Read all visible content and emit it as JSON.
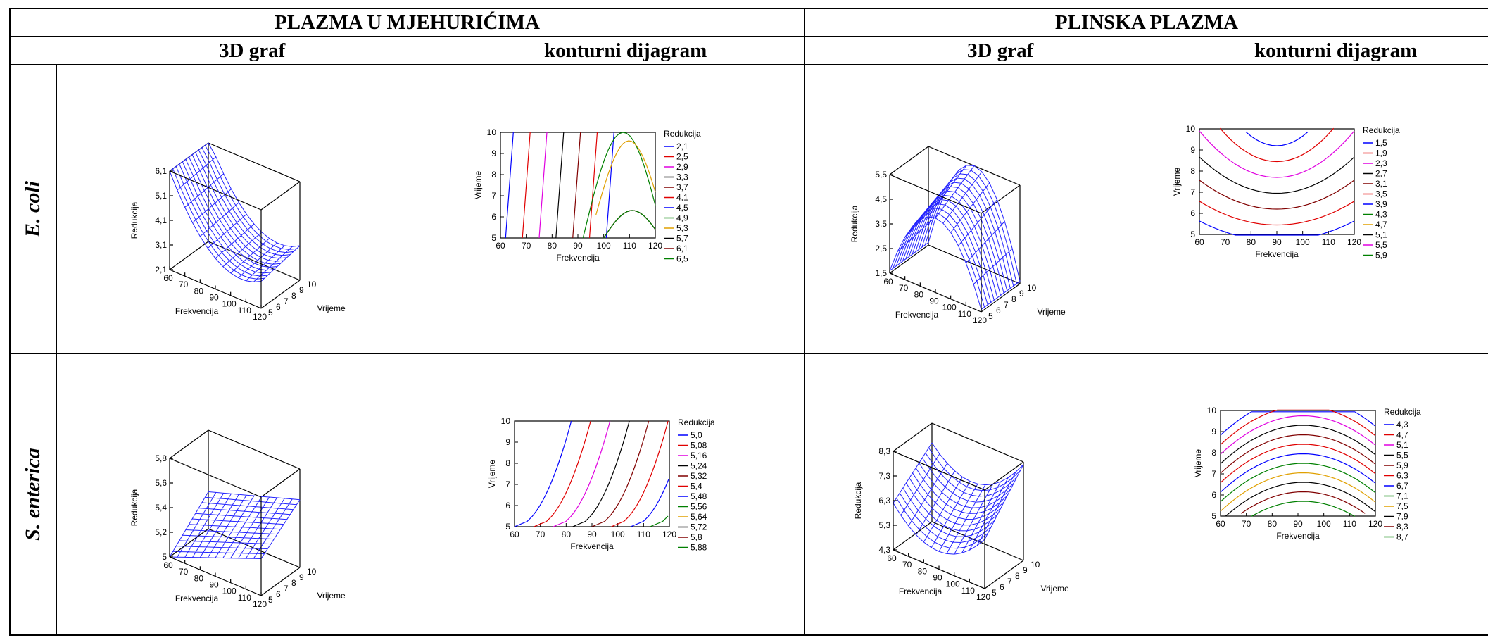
{
  "headers": {
    "group_a": "PLAZMA U MJEHURIĆIMA",
    "group_b": "PLINSKA PLAZMA",
    "graph3d": "3D graf",
    "contour": "konturni dijagram"
  },
  "rows": {
    "ecoli": "E. coli",
    "senterica": "S. enterica"
  },
  "chart_data": [
    {
      "id": "ecoli-bubble-3d",
      "type": "surface3d",
      "xlabel": "Frekvencija",
      "ylabel": "Vrijeme",
      "zlabel": "Redukcija",
      "x_ticks": [
        "60",
        "70",
        "80",
        "90",
        "100",
        "110",
        "120"
      ],
      "y_ticks": [
        "5",
        "6",
        "7",
        "8",
        "9",
        "10"
      ],
      "z_ticks": [
        "2,1",
        "3,1",
        "4,1",
        "5,1",
        "6,1"
      ],
      "surface": {
        "x_range": [
          60,
          120
        ],
        "y_range": [
          5,
          10
        ],
        "corner_z": {
          "x60_y5": 6.1,
          "x120_y5": 3.2,
          "x60_y10": 6.3,
          "x120_y10": 3.5
        },
        "min_z": 2.6
      },
      "color": "#2323ff"
    },
    {
      "id": "ecoli-bubble-contour",
      "type": "contour",
      "xlabel": "Frekvencija",
      "ylabel": "Vrijeme",
      "x_ticks": [
        "60",
        "70",
        "80",
        "90",
        "100",
        "110",
        "120"
      ],
      "y_ticks": [
        "5",
        "6",
        "7",
        "8",
        "9",
        "10"
      ],
      "legend_title": "Redukcija",
      "levels": [
        {
          "label": "2,1",
          "color": "#0000ff"
        },
        {
          "label": "2,5",
          "color": "#e00000"
        },
        {
          "label": "2,9",
          "color": "#e000e0"
        },
        {
          "label": "3,3",
          "color": "#000000"
        },
        {
          "label": "3,7",
          "color": "#800000"
        },
        {
          "label": "4,1",
          "color": "#e00000"
        },
        {
          "label": "4,5",
          "color": "#0000ff"
        },
        {
          "label": "4,9",
          "color": "#008000"
        },
        {
          "label": "5,3",
          "color": "#e0a000"
        },
        {
          "label": "5,7",
          "color": "#000000"
        },
        {
          "label": "6,1",
          "color": "#800000"
        },
        {
          "label": "6,5",
          "color": "#008000"
        }
      ]
    },
    {
      "id": "ecoli-gas-3d",
      "type": "surface3d",
      "xlabel": "Frekvencija",
      "ylabel": "Vrijeme",
      "zlabel": "Redukcija",
      "x_ticks": [
        "60",
        "70",
        "80",
        "90",
        "100",
        "110",
        "120"
      ],
      "y_ticks": [
        "5",
        "6",
        "7",
        "8",
        "9",
        "10"
      ],
      "z_ticks": [
        "1,5",
        "2,5",
        "3,5",
        "4,5",
        "5,5"
      ],
      "surface": {
        "x_range": [
          60,
          120
        ],
        "y_range": [
          5,
          10
        ],
        "peak_z": 5.5,
        "edge_z": 1.6
      },
      "color": "#2323ff"
    },
    {
      "id": "ecoli-gas-contour",
      "type": "contour",
      "xlabel": "Frekvencija",
      "ylabel": "Vrijeme",
      "x_ticks": [
        "60",
        "70",
        "80",
        "90",
        "100",
        "110",
        "120"
      ],
      "y_ticks": [
        "5",
        "6",
        "7",
        "8",
        "9",
        "10"
      ],
      "legend_title": "Redukcija",
      "levels": [
        {
          "label": "1,5",
          "color": "#0000ff"
        },
        {
          "label": "1,9",
          "color": "#e00000"
        },
        {
          "label": "2,3",
          "color": "#e000e0"
        },
        {
          "label": "2,7",
          "color": "#000000"
        },
        {
          "label": "3,1",
          "color": "#800000"
        },
        {
          "label": "3,5",
          "color": "#e00000"
        },
        {
          "label": "3,9",
          "color": "#0000ff"
        },
        {
          "label": "4,3",
          "color": "#008000"
        },
        {
          "label": "4,7",
          "color": "#e0a000"
        },
        {
          "label": "5,1",
          "color": "#000000"
        },
        {
          "label": "5,5",
          "color": "#e000e0"
        },
        {
          "label": "5,9",
          "color": "#008000"
        }
      ]
    },
    {
      "id": "sent-bubble-3d",
      "type": "surface3d",
      "xlabel": "Frekvencija",
      "ylabel": "Vrijeme",
      "zlabel": "Redukcija",
      "x_ticks": [
        "60",
        "70",
        "80",
        "90",
        "100",
        "110",
        "120"
      ],
      "y_ticks": [
        "5",
        "6",
        "7",
        "8",
        "9",
        "10"
      ],
      "z_ticks": [
        "5",
        "5,2",
        "5,4",
        "5,6",
        "5,8"
      ],
      "surface": {
        "x_range": [
          60,
          120
        ],
        "y_range": [
          5,
          10
        ],
        "corner_z": {
          "x60_y5": 5.0,
          "x120_y5": 5.3,
          "x60_y10": 5.3,
          "x120_y10": 5.55
        }
      },
      "color": "#2323ff"
    },
    {
      "id": "sent-bubble-contour",
      "type": "contour",
      "xlabel": "Frekvencija",
      "ylabel": "Vrijeme",
      "x_ticks": [
        "60",
        "70",
        "80",
        "90",
        "100",
        "110",
        "120"
      ],
      "y_ticks": [
        "5",
        "6",
        "7",
        "8",
        "9",
        "10"
      ],
      "legend_title": "Redukcija",
      "levels": [
        {
          "label": "5,0",
          "color": "#0000ff"
        },
        {
          "label": "5,08",
          "color": "#e00000"
        },
        {
          "label": "5,16",
          "color": "#e000e0"
        },
        {
          "label": "5,24",
          "color": "#000000"
        },
        {
          "label": "5,32",
          "color": "#800000"
        },
        {
          "label": "5,4",
          "color": "#e00000"
        },
        {
          "label": "5,48",
          "color": "#0000ff"
        },
        {
          "label": "5,56",
          "color": "#008000"
        },
        {
          "label": "5,64",
          "color": "#e0a000"
        },
        {
          "label": "5,72",
          "color": "#000000"
        },
        {
          "label": "5,8",
          "color": "#800000"
        },
        {
          "label": "5,88",
          "color": "#008000"
        }
      ]
    },
    {
      "id": "sent-gas-3d",
      "type": "surface3d",
      "xlabel": "Frekvencija",
      "ylabel": "Vrijeme",
      "zlabel": "Redukcija",
      "x_ticks": [
        "60",
        "70",
        "80",
        "90",
        "100",
        "110",
        "120"
      ],
      "y_ticks": [
        "5",
        "6",
        "7",
        "8",
        "9",
        "10"
      ],
      "z_ticks": [
        "4,3",
        "5,3",
        "6,3",
        "7,3",
        "8,3"
      ],
      "surface": {
        "x_range": [
          60,
          120
        ],
        "y_range": [
          5,
          10
        ],
        "corner_z": {
          "x60_y5": 6.2,
          "x120_y5": 6.3,
          "x60_y10": 7.5,
          "x120_y10": 8.2
        },
        "min_z": 5.0
      },
      "color": "#2323ff"
    },
    {
      "id": "sent-gas-contour",
      "type": "contour",
      "xlabel": "Frekvencija",
      "ylabel": "Vrijeme",
      "x_ticks": [
        "60",
        "70",
        "80",
        "90",
        "100",
        "110",
        "120"
      ],
      "y_ticks": [
        "5",
        "6",
        "7",
        "8",
        "9",
        "10"
      ],
      "legend_title": "Redukcija",
      "levels": [
        {
          "label": "4,3",
          "color": "#0000ff"
        },
        {
          "label": "4,7",
          "color": "#e00000"
        },
        {
          "label": "5,1",
          "color": "#e000e0"
        },
        {
          "label": "5,5",
          "color": "#000000"
        },
        {
          "label": "5,9",
          "color": "#800000"
        },
        {
          "label": "6,3",
          "color": "#e00000"
        },
        {
          "label": "6,7",
          "color": "#0000ff"
        },
        {
          "label": "7,1",
          "color": "#008000"
        },
        {
          "label": "7,5",
          "color": "#e0a000"
        },
        {
          "label": "7,9",
          "color": "#000000"
        },
        {
          "label": "8,3",
          "color": "#800000"
        },
        {
          "label": "8,7",
          "color": "#008000"
        }
      ]
    }
  ]
}
